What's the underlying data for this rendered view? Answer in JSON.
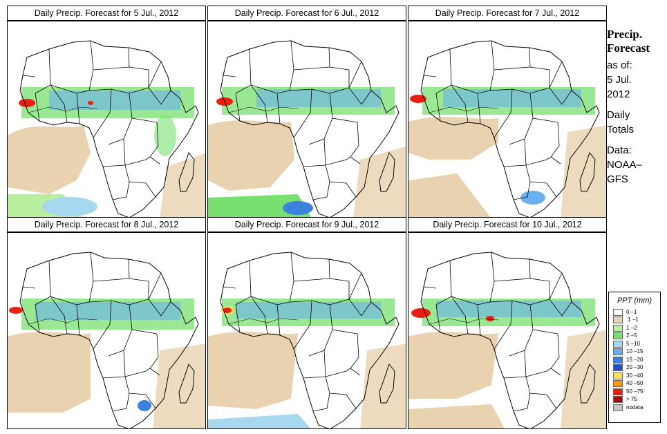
{
  "panels": [
    {
      "title": "Daily Precip. Forecast for  5 Jul., 2012",
      "day": 5
    },
    {
      "title": "Daily Precip. Forecast for  6 Jul., 2012",
      "day": 6
    },
    {
      "title": "Daily Precip. Forecast for  7 Jul., 2012",
      "day": 7
    },
    {
      "title": "Daily Precip. Forecast for  8 Jul., 2012",
      "day": 8
    },
    {
      "title": "Daily Precip. Forecast for  9 Jul., 2012",
      "day": 9
    },
    {
      "title": "Daily Precip. Forecast for  10 Jul., 2012",
      "day": 10
    }
  ],
  "side": {
    "title_line1": "Precip.",
    "title_line2": "Forecast",
    "asof_label": "as of:",
    "asof_date": "5 Jul.",
    "asof_year": "2012",
    "totals_line1": "Daily",
    "totals_line2": "Totals",
    "data_line1": "Data:",
    "data_line2": "NOAA–",
    "data_line3": "GFS"
  },
  "legend": {
    "title": "PPT (mm)",
    "items": [
      {
        "label": "0 –1",
        "color": "#ffffff"
      },
      {
        "label": ".1 –1",
        "color": "#e8d2b0"
      },
      {
        "label": "1 –2",
        "color": "#b8f0a0"
      },
      {
        "label": "2 –5",
        "color": "#78e070"
      },
      {
        "label": "5 –10",
        "color": "#a8d8f0"
      },
      {
        "label": "10 –15",
        "color": "#6ab0ee"
      },
      {
        "label": "15 –20",
        "color": "#3c80e0"
      },
      {
        "label": "20 –30",
        "color": "#1e50c8"
      },
      {
        "label": "30 –40",
        "color": "#f8e060"
      },
      {
        "label": "40 –50",
        "color": "#f89818"
      },
      {
        "label": "50 –75",
        "color": "#e82010"
      },
      {
        "label": "> 75",
        "color": "#a01010"
      },
      {
        "label": "nodata",
        "color": "#c8c8c8"
      }
    ]
  }
}
